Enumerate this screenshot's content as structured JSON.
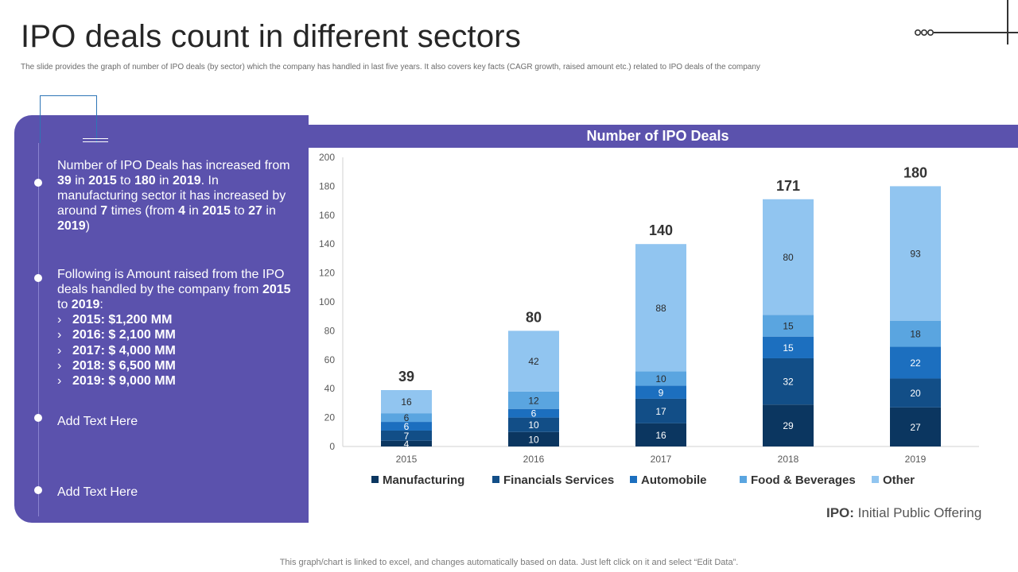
{
  "title": "IPO deals count in different sectors",
  "subtitle": "The slide provides the graph of number of IPO  deals (by sector) which the company has handled in last five years. It also covers key facts (CAGR growth, raised amount etc.) related to IPO  deals of the company",
  "panel": {
    "bullet1": {
      "t1": "Number of IPO Deals has increased from ",
      "b1": "39",
      "t2": " in ",
      "b2": "2015",
      "t3": " to ",
      "b3": "180",
      "t4": " in ",
      "b4": "2019",
      "t5": ". In manufacturing  sector it has increased by around ",
      "b5": "7",
      "t6": " times (from ",
      "b6": "4",
      "t7": " in ",
      "b7": "2015",
      "t8": " to ",
      "b8": "27",
      "t9": " in ",
      "b9": "2019",
      "t10": ")"
    },
    "bullet2": {
      "t1": "Following is Amount raised from the IPO deals handled by the company from ",
      "b1": "2015",
      "t2": " to ",
      "b2": "2019",
      "t3": ":",
      "chevron": "›",
      "amounts": [
        "2015: $1,200 MM",
        "2016: $ 2,100 MM",
        "2017: $ 4,000 MM",
        "2018: $ 6,500 MM",
        "2019: $ 9,000 MM"
      ]
    },
    "bullet3": "Add Text Here",
    "bullet4": "Add Text Here"
  },
  "ipo_note": {
    "abbr": "IPO:",
    "text": " Initial  Public Offering"
  },
  "footer": "This graph/chart is linked to excel,  and changes automatically based on data. Just left click on it and select “Edit Data”.",
  "colors": {
    "panel": "#5b52ad",
    "manufacturing": "#0b3660",
    "financials": "#124e87",
    "automobile": "#1c6fbf",
    "food": "#5aa5e0",
    "other": "#91c5f0"
  },
  "chart_data": {
    "type": "bar",
    "stacked": true,
    "title": "Number of IPO Deals",
    "categories": [
      "2015",
      "2016",
      "2017",
      "2018",
      "2019"
    ],
    "series": [
      {
        "name": "Manufacturing",
        "values": [
          4,
          10,
          16,
          29,
          27
        ]
      },
      {
        "name": "Financials Services",
        "values": [
          7,
          10,
          17,
          32,
          20
        ]
      },
      {
        "name": "Automobile",
        "values": [
          6,
          6,
          9,
          15,
          22
        ]
      },
      {
        "name": "Food & Beverages",
        "values": [
          6,
          12,
          10,
          15,
          18
        ]
      },
      {
        "name": "Other",
        "values": [
          16,
          42,
          88,
          80,
          93
        ]
      }
    ],
    "totals": [
      39,
      80,
      140,
      171,
      180
    ],
    "yticks": [
      0,
      20,
      40,
      60,
      80,
      100,
      120,
      140,
      160,
      180,
      200
    ],
    "ylim": [
      0,
      200
    ],
    "legend": "bottom",
    "grid": false
  }
}
